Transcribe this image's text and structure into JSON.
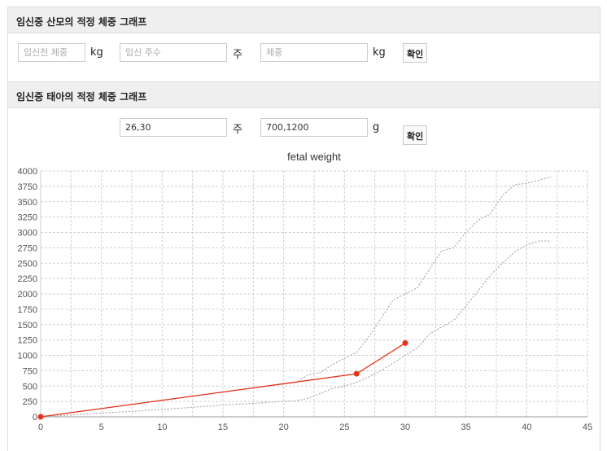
{
  "mother": {
    "title": "임신중 산모의 적정 체중 그래프",
    "pre_weight_placeholder": "임신전 체중",
    "unit_kg": "kg",
    "weeks_placeholder": "임신 주수",
    "unit_week": "주",
    "weight_placeholder": "체중",
    "unit_kg2": "kg",
    "confirm": "확인"
  },
  "fetus": {
    "title": "임신중 태아의 적정 체중 그래프",
    "weeks_value": "26,30",
    "unit_week": "주",
    "weight_value": "700,1200",
    "unit_g": "g",
    "confirm": "확인"
  },
  "chart_data": {
    "type": "line",
    "title": "fetal weight",
    "xlabel": "",
    "ylabel": "",
    "xlim": [
      0,
      45
    ],
    "ylim": [
      0,
      4000
    ],
    "xticks": [
      0,
      5,
      10,
      15,
      20,
      25,
      30,
      35,
      40,
      45
    ],
    "yticks": [
      0,
      250,
      500,
      750,
      1000,
      1250,
      1500,
      1750,
      2000,
      2250,
      2500,
      2750,
      3000,
      3250,
      3500,
      3750,
      4000
    ],
    "grid": true,
    "colors": {
      "measured": "#e8321a",
      "reference": "#aaaaaa"
    },
    "series": [
      {
        "x": [
          0,
          21,
          22,
          23,
          24,
          25,
          26,
          27,
          28,
          29,
          30,
          31,
          32,
          33,
          34,
          35,
          36,
          37,
          38,
          39,
          40,
          41,
          42
        ],
        "y": [
          0,
          560,
          680,
          720,
          850,
          950,
          1050,
          1300,
          1600,
          1900,
          2000,
          2100,
          2400,
          2700,
          2750,
          3000,
          3200,
          3300,
          3600,
          3775,
          3800,
          3850,
          3900
        ],
        "style": "dotted"
      },
      {
        "x": [
          0,
          5,
          10,
          15,
          20,
          21,
          22,
          23,
          24,
          25,
          26,
          27,
          28,
          29,
          30,
          31,
          32,
          33,
          34,
          35,
          36,
          37,
          38,
          39,
          40,
          41,
          42
        ],
        "y": [
          0,
          60,
          120,
          190,
          250,
          260,
          300,
          380,
          460,
          500,
          560,
          650,
          750,
          870,
          1000,
          1120,
          1350,
          1460,
          1570,
          1800,
          2050,
          2300,
          2500,
          2680,
          2800,
          2860,
          2860
        ],
        "style": "dotted"
      },
      {
        "x": [
          0,
          26,
          30
        ],
        "y": [
          0,
          700,
          1200
        ],
        "style": "solid",
        "markers": true
      }
    ]
  }
}
